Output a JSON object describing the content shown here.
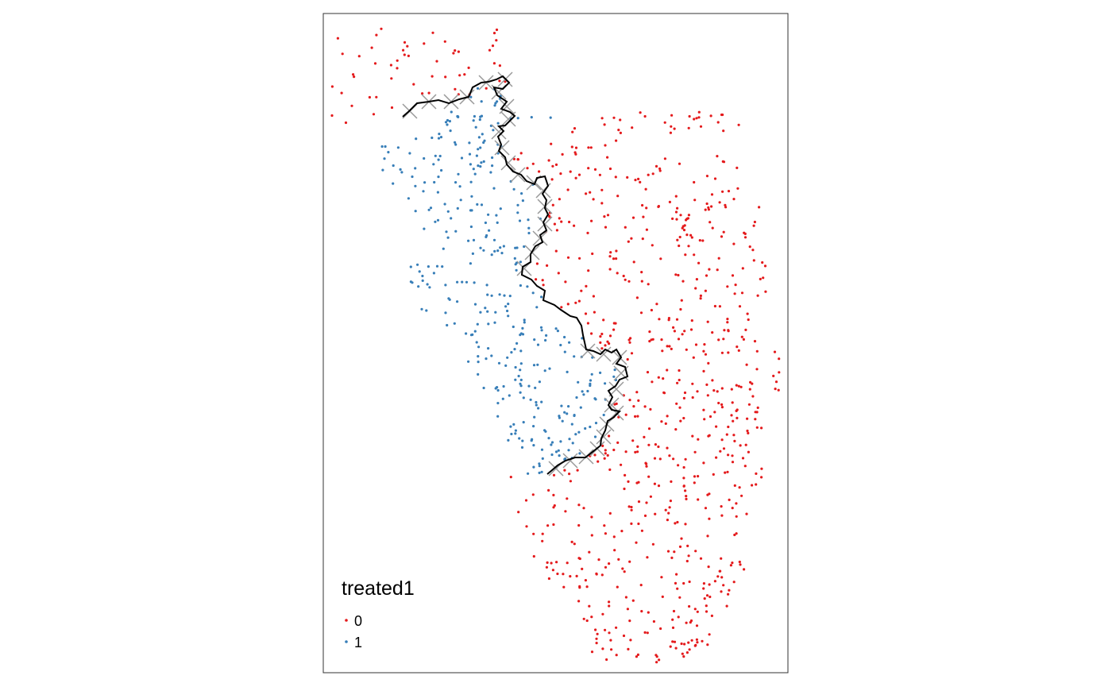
{
  "legend": {
    "title": "treated1",
    "items": [
      {
        "label": "0",
        "color": "#e41a1c"
      },
      {
        "label": "1",
        "color": "#377eb8"
      }
    ]
  },
  "colors": {
    "untreated": "#e41a1c",
    "treated": "#377eb8",
    "boundary_line": "#000000",
    "boundary_markers": "#999999",
    "frame": "#333333"
  },
  "marker_symbol": "x-cross",
  "point_seed": 7
}
